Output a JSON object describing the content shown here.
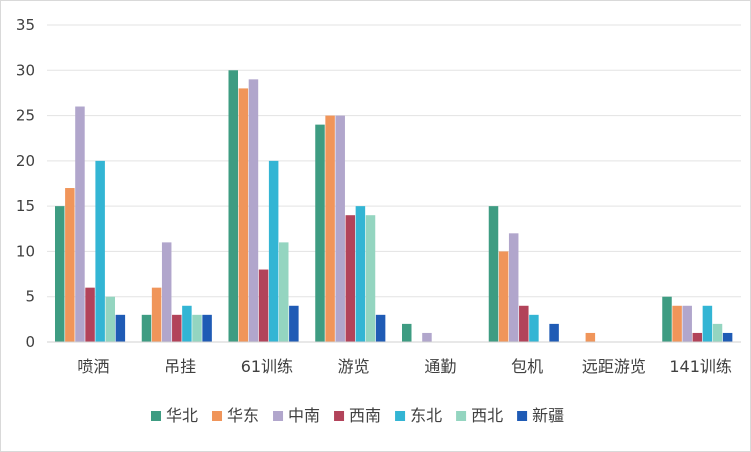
{
  "chart_data": {
    "type": "bar",
    "title": "",
    "xlabel": "",
    "ylabel": "",
    "ylim": [
      0,
      35
    ],
    "yticks": [
      0,
      5,
      10,
      15,
      20,
      25,
      30,
      35
    ],
    "grid": true,
    "legend_position": "bottom",
    "categories": [
      "喷洒",
      "吊挂",
      "61训练",
      "游览",
      "通勤",
      "包机",
      "远距游览",
      "141训练"
    ],
    "series": [
      {
        "name": "华北",
        "color": "#3e9c82",
        "values": [
          15,
          3,
          30,
          24,
          2,
          15,
          0,
          5
        ]
      },
      {
        "name": "华东",
        "color": "#f0955a",
        "values": [
          17,
          6,
          28,
          25,
          0,
          10,
          1,
          4
        ]
      },
      {
        "name": "中南",
        "color": "#b1a6cc",
        "values": [
          26,
          11,
          29,
          25,
          1,
          12,
          0,
          4
        ]
      },
      {
        "name": "西南",
        "color": "#b2435a",
        "values": [
          6,
          3,
          8,
          14,
          0,
          4,
          0,
          1
        ]
      },
      {
        "name": "东北",
        "color": "#33b5d4",
        "values": [
          20,
          4,
          20,
          15,
          0,
          3,
          0,
          4
        ]
      },
      {
        "name": "西北",
        "color": "#94d5c0",
        "values": [
          5,
          3,
          11,
          14,
          0,
          0,
          0,
          2
        ]
      },
      {
        "name": "新疆",
        "color": "#1f5bb5",
        "values": [
          3,
          3,
          4,
          3,
          0,
          2,
          0,
          1
        ]
      }
    ]
  }
}
